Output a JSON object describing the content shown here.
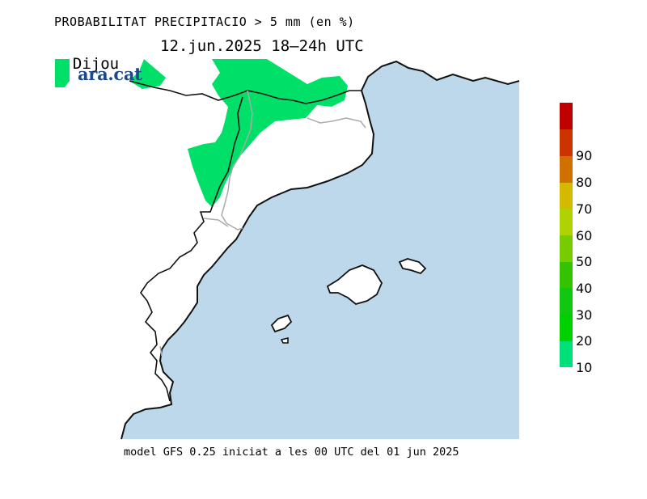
{
  "title": "PROBABILITAT PRECIPITACIO > 5 mm (en %)",
  "day": "Dijous",
  "date": "12.jun.2025 18–24h UTC",
  "logo": "ara.cat",
  "footer": "model GFS 0.25 iniciat a les 00 UTC del 01 jun 2025",
  "colors": {
    "sea": "#bcd8ea",
    "land": "#ffffff",
    "coast": "#111111",
    "border": "#aaaaaa",
    "precip": "#00e068",
    "logo": "#1b4a8a"
  },
  "colorbar": {
    "labels": [
      "10",
      "20",
      "30",
      "40",
      "50",
      "60",
      "70",
      "80",
      "90"
    ],
    "colors": [
      "#00e07a",
      "#00d000",
      "#10c810",
      "#33c300",
      "#77cc00",
      "#aed300",
      "#d5b800",
      "#d07000",
      "#cc3300",
      "#c00000"
    ]
  }
}
